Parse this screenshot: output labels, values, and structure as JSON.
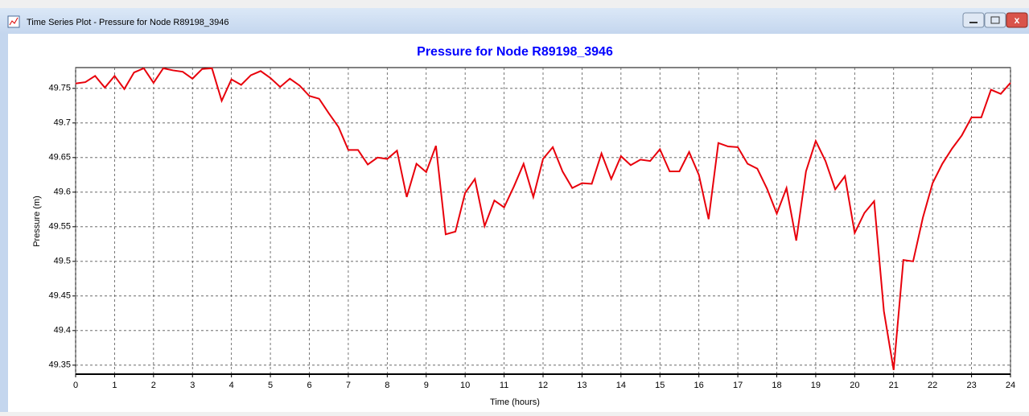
{
  "window": {
    "title": "Time Series Plot - Pressure for Node R89198_3946"
  },
  "chart_data": {
    "type": "line",
    "title": "Pressure for Node R89198_3946",
    "x_label": "Time (hours)",
    "y_label": "Pressure (m)",
    "x": [
      0,
      0.25,
      0.5,
      0.75,
      1,
      1.25,
      1.5,
      1.75,
      2,
      2.25,
      2.5,
      2.75,
      3,
      3.25,
      3.5,
      3.75,
      4,
      4.25,
      4.5,
      4.75,
      5,
      5.25,
      5.5,
      5.75,
      6,
      6.25,
      6.5,
      6.75,
      7,
      7.25,
      7.5,
      7.75,
      8,
      8.25,
      8.5,
      8.75,
      9,
      9.25,
      9.5,
      9.75,
      10,
      10.25,
      10.5,
      10.75,
      11,
      11.25,
      11.5,
      11.75,
      12,
      12.25,
      12.5,
      12.75,
      13,
      13.25,
      13.5,
      13.75,
      14,
      14.25,
      14.5,
      14.75,
      15,
      15.25,
      15.5,
      15.75,
      16,
      16.25,
      16.5,
      16.75,
      17,
      17.25,
      17.5,
      17.75,
      18,
      18.25,
      18.5,
      18.75,
      19,
      19.25,
      19.5,
      19.75,
      20,
      20.25,
      20.5,
      20.75,
      21,
      21.25,
      21.5,
      21.75,
      22,
      22.25,
      22.5,
      22.75,
      23,
      23.25,
      23.5,
      23.75,
      24
    ],
    "series": [
      {
        "name": "Pressure",
        "color": "#e8000b",
        "values": [
          49.757,
          49.759,
          49.768,
          49.751,
          49.768,
          49.749,
          49.773,
          49.779,
          49.758,
          49.779,
          49.776,
          49.774,
          49.764,
          49.778,
          49.779,
          49.732,
          49.763,
          49.755,
          49.769,
          49.775,
          49.765,
          49.752,
          49.764,
          49.754,
          49.739,
          49.735,
          49.714,
          49.694,
          49.661,
          49.661,
          49.64,
          49.65,
          49.648,
          49.66,
          49.593,
          49.641,
          49.629,
          49.667,
          49.539,
          49.543,
          49.599,
          49.619,
          49.551,
          49.588,
          49.578,
          49.608,
          49.641,
          49.593,
          49.648,
          49.665,
          49.63,
          49.606,
          49.613,
          49.612,
          49.656,
          49.619,
          49.652,
          49.639,
          49.647,
          49.645,
          49.662,
          49.63,
          49.63,
          49.658,
          49.625,
          49.561,
          49.671,
          49.666,
          49.665,
          49.641,
          49.634,
          49.605,
          49.569,
          49.606,
          49.53,
          49.63,
          49.674,
          49.645,
          49.604,
          49.623,
          49.541,
          49.57,
          49.587,
          49.428,
          49.343,
          49.502,
          49.5,
          49.563,
          49.613,
          49.641,
          49.663,
          49.682,
          49.708,
          49.708,
          49.748,
          49.742,
          49.758
        ]
      }
    ],
    "xlim": [
      0,
      24
    ],
    "xticks": [
      0,
      1,
      2,
      3,
      4,
      5,
      6,
      7,
      8,
      9,
      10,
      11,
      12,
      13,
      14,
      15,
      16,
      17,
      18,
      19,
      20,
      21,
      22,
      23,
      24
    ],
    "ylim": [
      49.337,
      49.78
    ],
    "yticks": [
      49.35,
      49.4,
      49.45,
      49.5,
      49.55,
      49.6,
      49.65,
      49.7,
      49.75
    ],
    "grid": true
  }
}
